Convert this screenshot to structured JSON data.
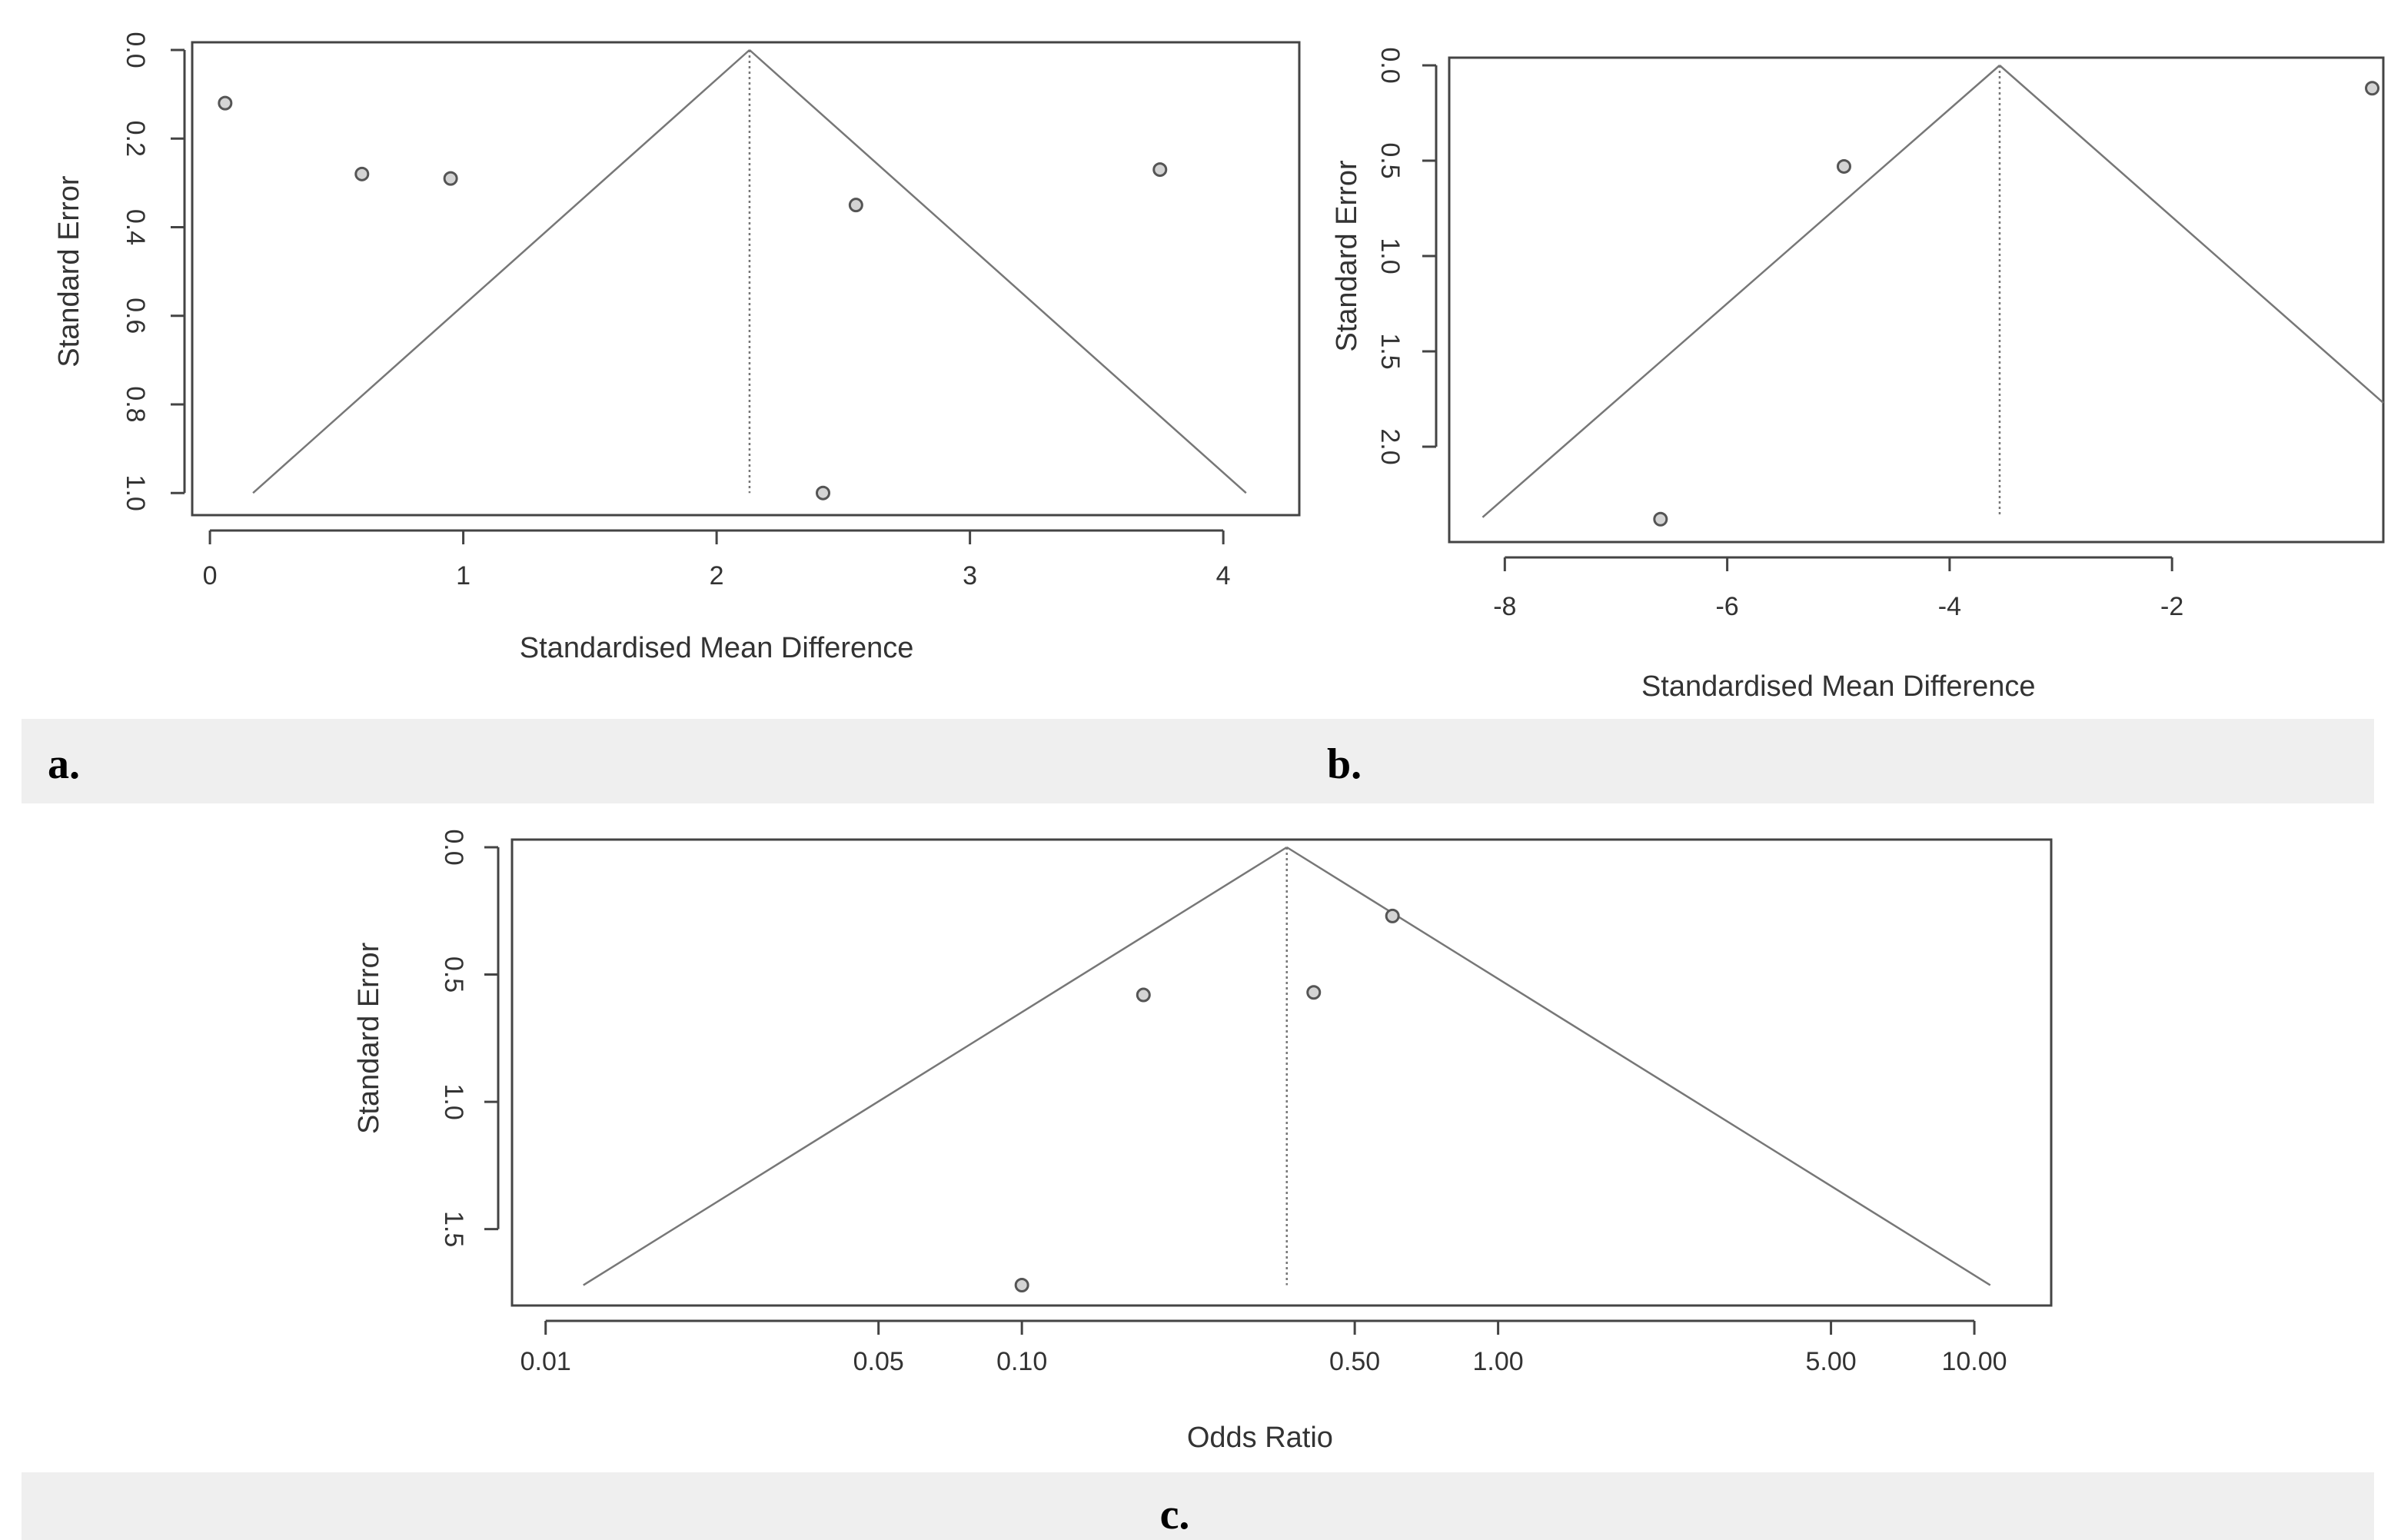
{
  "colors": {
    "axis": "#444444",
    "funnel": "#777777",
    "point_stroke": "#555555",
    "point_fill": "#d4d4d4",
    "caption_band": "#efefef",
    "text": "#333333"
  },
  "chart_data": [
    {
      "panel": "a.",
      "type": "scatter",
      "subtype": "funnel",
      "title": "",
      "xlabel": "Standardised Mean Difference",
      "ylabel": "Standard Error",
      "x_scale": "linear",
      "y_reversed": true,
      "xlim": [
        -0.07,
        4.3
      ],
      "ylim": [
        0,
        1.05
      ],
      "xticks": [
        0,
        1,
        2,
        3,
        4
      ],
      "xtick_labels": [
        "0",
        "1",
        "2",
        "3",
        "4"
      ],
      "yticks": [
        0,
        0.2,
        0.4,
        0.6,
        0.8,
        1.0
      ],
      "ytick_labels": [
        "0.0",
        "0.2",
        "0.4",
        "0.6",
        "0.8",
        "1.0"
      ],
      "pooled_estimate": 2.13,
      "funnel": {
        "apex": [
          2.13,
          0
        ],
        "left_base": [
          0.17,
          1.0
        ],
        "right_base": [
          4.09,
          1.0
        ]
      },
      "points": [
        {
          "x": 0.06,
          "y": 0.12
        },
        {
          "x": 0.6,
          "y": 0.28
        },
        {
          "x": 0.95,
          "y": 0.29
        },
        {
          "x": 2.55,
          "y": 0.35
        },
        {
          "x": 3.75,
          "y": 0.27
        },
        {
          "x": 2.42,
          "y": 1.0
        }
      ],
      "grid": false,
      "legend": "none"
    },
    {
      "panel": "b.",
      "type": "scatter",
      "subtype": "funnel",
      "title": "",
      "xlabel": "Standardised Mean Difference",
      "ylabel": "Standard Error",
      "x_scale": "linear",
      "y_reversed": true,
      "xlim": [
        -8.5,
        -0.1
      ],
      "ylim": [
        0,
        2.5
      ],
      "xticks": [
        -8,
        -6,
        -4,
        -2
      ],
      "xtick_labels": [
        "-8",
        "-6",
        "-4",
        "-2"
      ],
      "yticks": [
        0,
        0.5,
        1.0,
        1.5,
        2.0
      ],
      "ytick_labels": [
        "0.0",
        "0.5",
        "1.0",
        "1.5",
        "2.0"
      ],
      "pooled_estimate": -3.55,
      "funnel": {
        "apex": [
          -3.55,
          0
        ],
        "left_base": [
          -8.2,
          2.37
        ],
        "right_base": [
          -0.1,
          1.77
        ]
      },
      "points": [
        {
          "x": -6.6,
          "y": 2.38
        },
        {
          "x": -4.95,
          "y": 0.53
        },
        {
          "x": -0.2,
          "y": 0.12
        }
      ],
      "grid": false,
      "legend": "none"
    },
    {
      "panel": "c.",
      "type": "scatter",
      "subtype": "funnel",
      "title": "",
      "xlabel": "Odds Ratio",
      "ylabel": "Standard Error",
      "x_scale": "log",
      "y_reversed": true,
      "xlim": [
        0.0085,
        14.5
      ],
      "ylim": [
        0,
        1.8
      ],
      "xticks": [
        0.01,
        0.05,
        0.1,
        0.5,
        1,
        5,
        10
      ],
      "xtick_labels": [
        "0.01",
        "0.05",
        "0.10",
        "0.50",
        "1.00",
        "5.00",
        "10.00"
      ],
      "yticks": [
        0,
        0.5,
        1.0,
        1.5
      ],
      "ytick_labels": [
        "0.0",
        "0.5",
        "1.0",
        "1.5"
      ],
      "pooled_estimate": 0.36,
      "funnel": {
        "apex": [
          0.36,
          0
        ],
        "left_base": [
          0.012,
          1.72
        ],
        "right_base": [
          10.8,
          1.72
        ]
      },
      "points": [
        {
          "x": 0.1,
          "y": 1.72
        },
        {
          "x": 0.18,
          "y": 0.58
        },
        {
          "x": 0.41,
          "y": 0.57
        },
        {
          "x": 0.6,
          "y": 0.27
        }
      ],
      "grid": false,
      "legend": "none"
    }
  ]
}
